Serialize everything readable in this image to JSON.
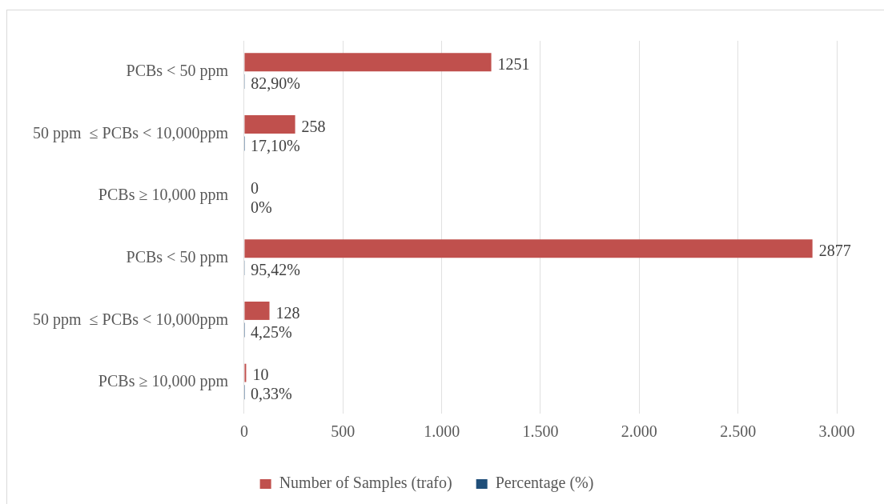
{
  "chart_data": {
    "type": "bar",
    "orientation": "horizontal",
    "categories": [
      "PCBs < 50 ppm",
      "50 ppm  ≤ PCBs < 10,000ppm",
      "PCBs ≥ 10,000 ppm",
      "PCBs < 50 ppm",
      "50 ppm  ≤ PCBs < 10,000ppm",
      "PCBs ≥ 10,000 ppm"
    ],
    "series": [
      {
        "name": "Number of Samples (trafo)",
        "color": "#c0504d",
        "values": [
          1251,
          258,
          0,
          2877,
          128,
          10
        ],
        "value_labels": [
          "1251",
          "258",
          "0",
          "2877",
          "128",
          "10"
        ]
      },
      {
        "name": "Percentage (%)",
        "color": "#1f4e79",
        "values": [
          0.829,
          0.171,
          0,
          0.9542,
          0.0425,
          0.0033
        ],
        "value_labels": [
          "82,90%",
          "17,10%",
          "0%",
          "95,42%",
          "4,25%",
          "0,33%"
        ]
      }
    ],
    "xlim": [
      0,
      3000
    ],
    "xticks": [
      0,
      500,
      {
        "value": 1000,
        "label": "1.000"
      },
      {
        "value": 1500,
        "label": "1.500"
      },
      {
        "value": 2000,
        "label": "2.000"
      },
      {
        "value": 2500,
        "label": "2.500"
      },
      {
        "value": 3000,
        "label": "3.000"
      }
    ],
    "grid": "x",
    "legend": "bottom"
  }
}
